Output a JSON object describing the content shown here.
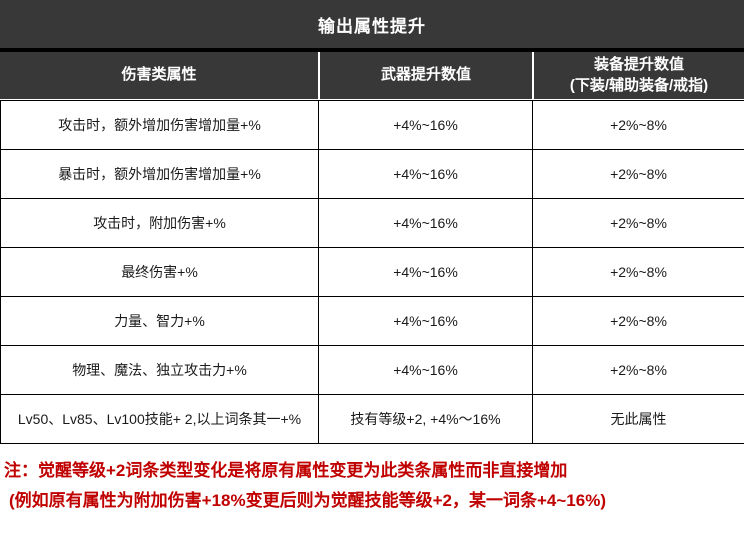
{
  "title": "输出属性提升",
  "header": {
    "col1": "伤害类属性",
    "col2": "武器提升数值",
    "col3_line1": "装备提升数值",
    "col3_line2": "(下装/辅助装备/戒指)"
  },
  "rows": [
    {
      "attr": "攻击时，额外增加伤害增加量+%",
      "weapon": "+4%~16%",
      "equip": "+2%~8%"
    },
    {
      "attr": "暴击时，额外增加伤害增加量+%",
      "weapon": "+4%~16%",
      "equip": "+2%~8%"
    },
    {
      "attr": "攻击时，附加伤害+%",
      "weapon": "+4%~16%",
      "equip": "+2%~8%"
    },
    {
      "attr": "最终伤害+%",
      "weapon": "+4%~16%",
      "equip": "+2%~8%"
    },
    {
      "attr": "力量、智力+%",
      "weapon": "+4%~16%",
      "equip": "+2%~8%"
    },
    {
      "attr": "物理、魔法、独立攻击力+%",
      "weapon": "+4%~16%",
      "equip": "+2%~8%"
    },
    {
      "attr": "Lv50、Lv85、Lv100技能+ 2,以上词条其一+%",
      "weapon": "技有等级+2, +4%〜16%",
      "equip": "无此属性"
    }
  ],
  "note": {
    "line1": "注：觉醒等级+2词条类型变化是将原有属性变更为此类条属性而非直接增加",
    "line2": "(例如原有属性为附加伤害+18%变更后则为觉醒技能等级+2，某一词条+4~16%)"
  },
  "colors": {
    "bar_background": "#383838",
    "bar_text": "#ffffff",
    "cell_border": "#000000",
    "cell_text": "#1a1a1a",
    "note_red": "#c00000"
  }
}
